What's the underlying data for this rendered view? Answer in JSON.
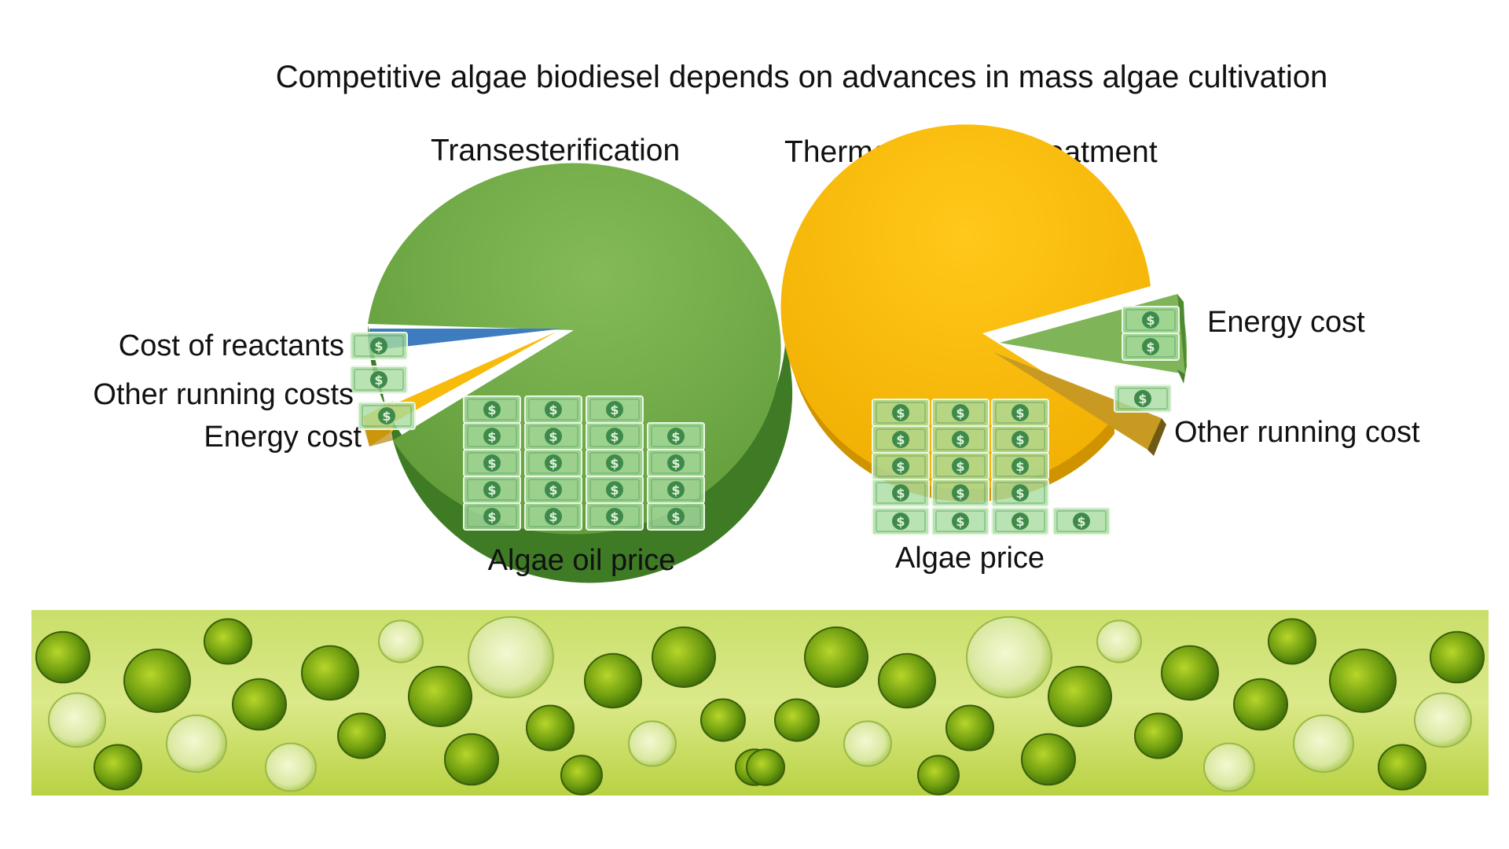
{
  "title": "Competitive algae biodiesel depends on advances in mass algae cultivation",
  "colors": {
    "green": "#72a947",
    "yellow": "#f8bb0c",
    "blue": "#3d7dbf",
    "olive": "#b59030",
    "money": "#8fd08a",
    "money_dark": "#3f8a4b",
    "text": "#111111"
  },
  "chart_data": [
    {
      "type": "pie",
      "title": "Transesterification",
      "categories": [
        "Algae oil price",
        "Cost of reactants",
        "Other running costs",
        "Energy cost"
      ],
      "values": [
        92,
        4,
        2,
        2
      ],
      "colors": [
        "#72a947",
        "#3d7dbf",
        "#f8bb0c",
        "#f8bb0c"
      ],
      "icon_counts": [
        19,
        1,
        1,
        1
      ]
    },
    {
      "type": "pie",
      "title": "Thermo-pressure treatment",
      "categories": [
        "Algae price",
        "Energy cost",
        "Other running cost"
      ],
      "values": [
        86,
        9,
        5
      ],
      "colors": [
        "#f8bb0c",
        "#72a947",
        "#b59030"
      ],
      "icon_counts": [
        16,
        2,
        1
      ]
    }
  ],
  "image": {
    "strip": "algae-micrograph",
    "icon": "dollar-bill-icon"
  }
}
